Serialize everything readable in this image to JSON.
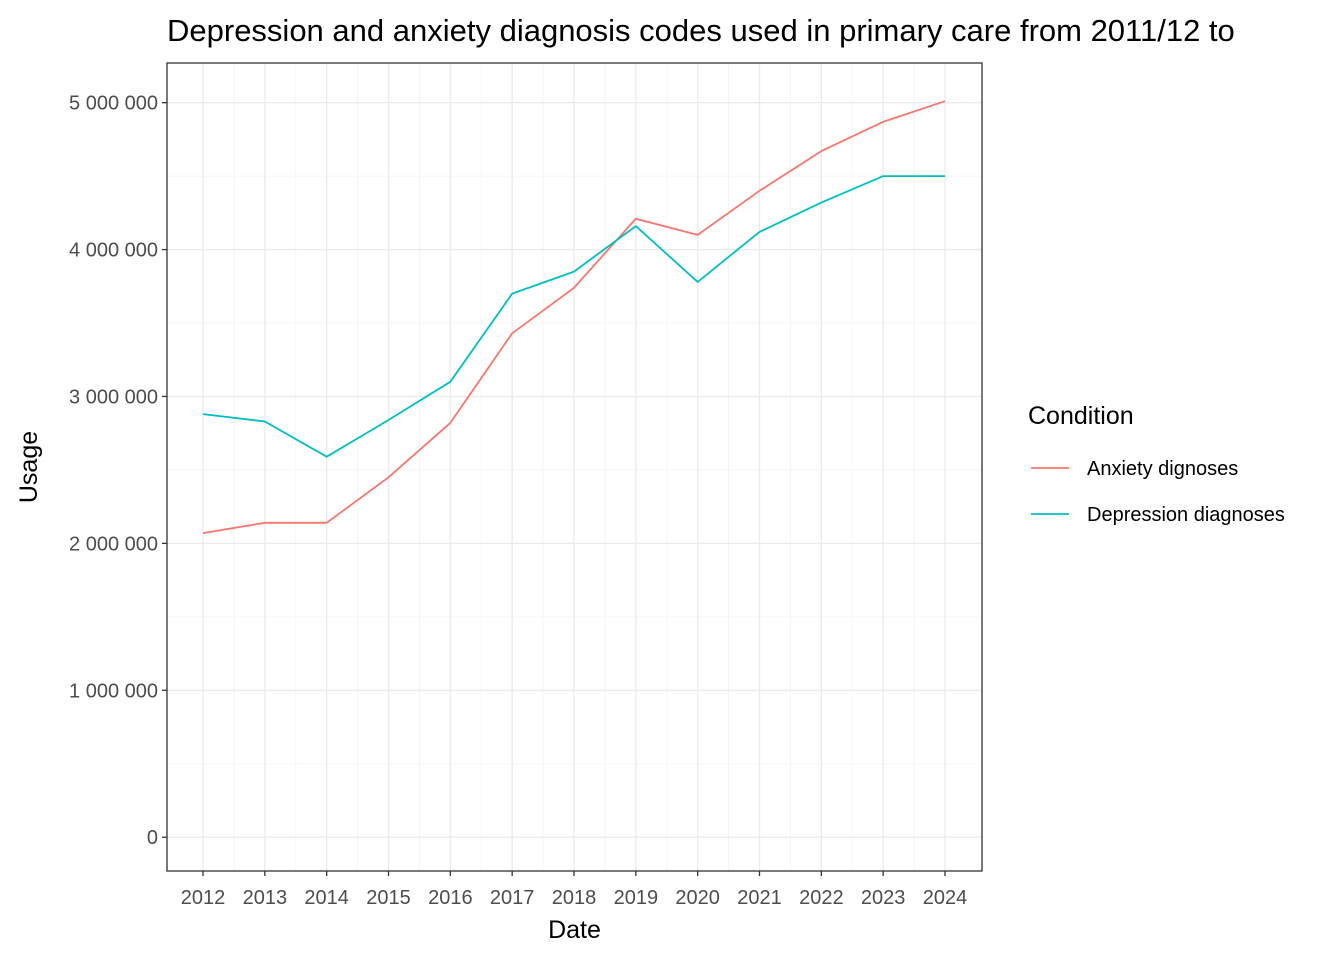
{
  "chart_data": {
    "type": "line",
    "title": "Depression and anxiety diagnosis codes used in primary care from 2011/12 to",
    "xlabel": "Date",
    "ylabel": "Usage",
    "x": [
      "2012",
      "2013",
      "2014",
      "2015",
      "2016",
      "2017",
      "2018",
      "2019",
      "2020",
      "2021",
      "2022",
      "2023",
      "2024"
    ],
    "y_ticks": [
      0,
      1000000,
      2000000,
      3000000,
      4000000,
      5000000
    ],
    "y_tick_labels": [
      "0",
      "1 000 000",
      "2 000 000",
      "3 000 000",
      "4 000 000",
      "5 000 000"
    ],
    "ylim": [
      -230000,
      5270000
    ],
    "grid": true,
    "legend_title": "Condition",
    "legend_position": "right",
    "series": [
      {
        "name": "Anxiety dignoses",
        "color": "#F8766D",
        "values": [
          2070000,
          2140000,
          2140000,
          2450000,
          2820000,
          3430000,
          3740000,
          4210000,
          4100000,
          4400000,
          4670000,
          4870000,
          5010000
        ]
      },
      {
        "name": "Depression diagnoses",
        "color": "#00BFC4",
        "values": [
          2880000,
          2830000,
          2590000,
          2840000,
          3100000,
          3700000,
          3850000,
          4160000,
          3780000,
          4120000,
          4320000,
          4500000,
          4500000
        ]
      }
    ]
  }
}
